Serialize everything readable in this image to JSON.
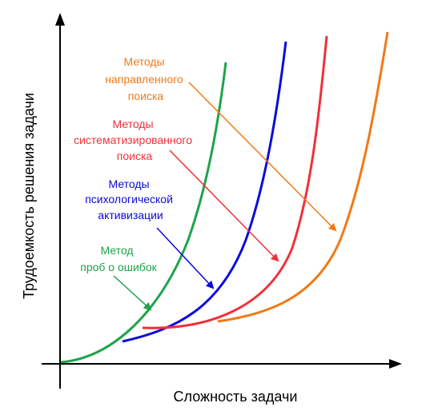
{
  "axes": {
    "xlabel": "Сложность задачи",
    "ylabel": "Трудоемкость решения задачи"
  },
  "curves": [
    {
      "id": "trial-error",
      "color": "#1ea34a",
      "label_lines": [
        "Метод",
        "проб о ошибок"
      ]
    },
    {
      "id": "psychological",
      "color": "#0a0adc",
      "label_lines": [
        "Методы",
        "психологической",
        "активизации"
      ]
    },
    {
      "id": "systematic",
      "color": "#f0303a",
      "label_lines": [
        "Методы",
        "систематизированного",
        "поиска"
      ]
    },
    {
      "id": "directed",
      "color": "#f07a18",
      "label_lines": [
        "Методы",
        "направленного",
        "поиска"
      ]
    }
  ]
}
